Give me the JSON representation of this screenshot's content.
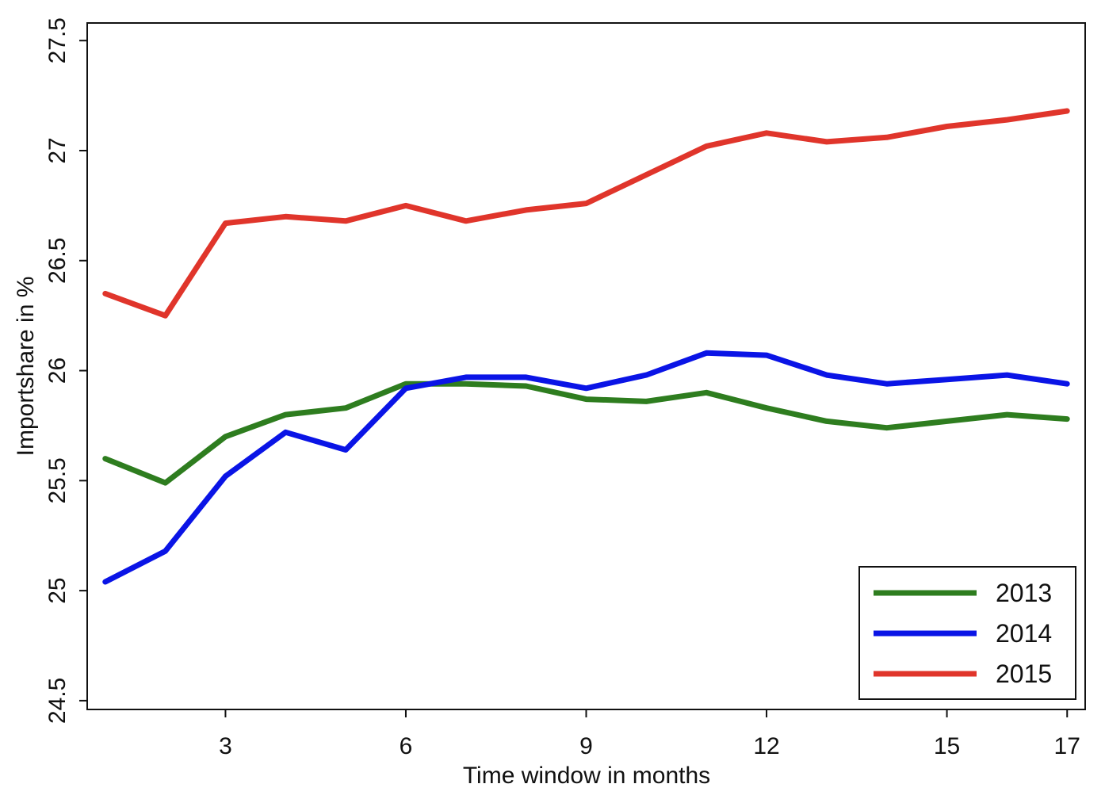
{
  "chart_data": {
    "type": "line",
    "title": "",
    "xlabel": "Time window in months",
    "ylabel": "Importshare in %",
    "xlim": [
      0.7,
      17.3
    ],
    "ylim": [
      24.46,
      27.58
    ],
    "x_ticks": [
      3,
      6,
      9,
      12,
      15,
      17
    ],
    "y_ticks": [
      24.5,
      25,
      25.5,
      26,
      26.5,
      27,
      27.5
    ],
    "x_tick_labels": [
      "3",
      "6",
      "9",
      "12",
      "15",
      "17"
    ],
    "y_tick_labels": [
      "24.5",
      "25",
      "25.5",
      "26",
      "26.5",
      "27",
      "27.5"
    ],
    "grid": false,
    "legend_position": "bottom-right",
    "x": [
      1,
      2,
      3,
      4,
      5,
      6,
      7,
      8,
      9,
      10,
      11,
      12,
      13,
      14,
      15,
      16,
      17
    ],
    "series": [
      {
        "name": "2013",
        "color": "#2e7d1f",
        "values": [
          25.6,
          25.49,
          25.7,
          25.8,
          25.83,
          25.94,
          25.94,
          25.93,
          25.87,
          25.86,
          25.9,
          25.83,
          25.77,
          25.74,
          25.77,
          25.8,
          25.78
        ]
      },
      {
        "name": "2014",
        "color": "#0a14e6",
        "values": [
          25.04,
          25.18,
          25.52,
          25.72,
          25.64,
          25.92,
          25.97,
          25.97,
          25.92,
          25.98,
          26.08,
          26.07,
          25.98,
          25.94,
          25.96,
          25.98,
          25.94
        ]
      },
      {
        "name": "2015",
        "color": "#e0352b",
        "values": [
          26.35,
          26.25,
          26.67,
          26.7,
          26.68,
          26.75,
          26.68,
          26.73,
          26.76,
          26.89,
          27.02,
          27.08,
          27.04,
          27.06,
          27.11,
          27.14,
          27.18
        ]
      }
    ]
  }
}
